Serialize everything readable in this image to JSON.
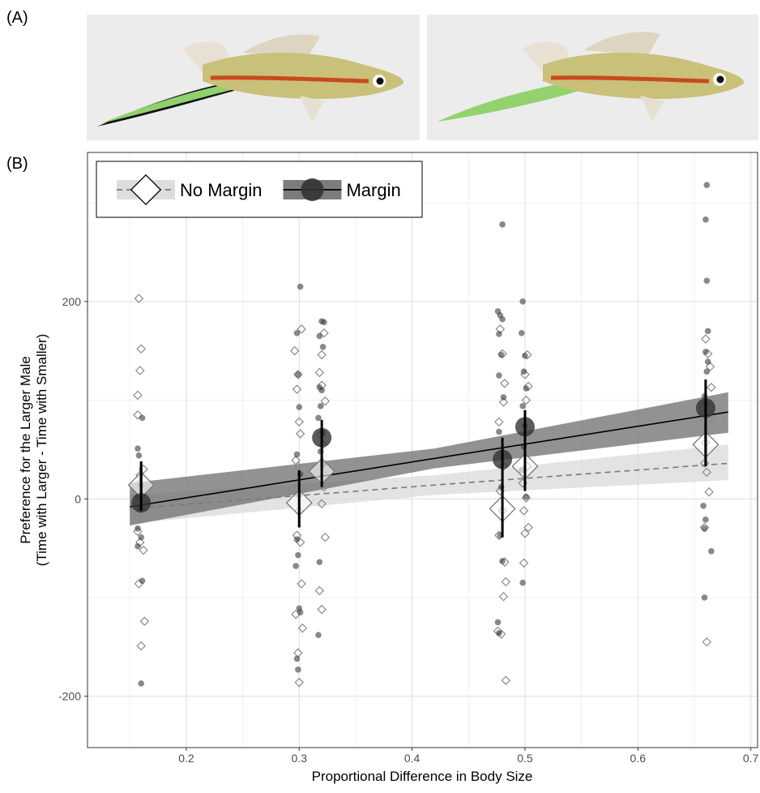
{
  "panel_labels": [
    "(A)",
    "(B)"
  ],
  "chart_data": {
    "type": "scatter",
    "xlabel": "Proportional Difference in Body Size",
    "ylabel": [
      "Preference for the Larger Male",
      "(Time with Larger - Time with Smaller)"
    ],
    "xlim": [
      0.1125,
      0.706
    ],
    "ylim": [
      -252,
      351
    ],
    "xticks": [
      0.2,
      0.3,
      0.4,
      0.5,
      0.6,
      0.7
    ],
    "yticks": [
      -200,
      0,
      200
    ],
    "grid": true,
    "legend": "upper left",
    "series": [
      {
        "name": "No Margin",
        "marker": "diamond",
        "color": "#8a8a8a",
        "line_style": "dashed",
        "line_color": "#7a7a7a",
        "ribbon_color": "#d9d9d9",
        "x": [
          0.158,
          0.16,
          0.159,
          0.157,
          0.157,
          0.162,
          0.159,
          0.158,
          0.161,
          0.157,
          0.159,
          0.162,
          0.158,
          0.163,
          0.16,
          0.302,
          0.296,
          0.299,
          0.298,
          0.3,
          0.301,
          0.297,
          0.299,
          0.3,
          0.298,
          0.301,
          0.302,
          0.297,
          0.303,
          0.299,
          0.3,
          0.322,
          0.32,
          0.318,
          0.32,
          0.323,
          0.319,
          0.321,
          0.318,
          0.322,
          0.32,
          0.323,
          0.318,
          0.32,
          0.478,
          0.48,
          0.482,
          0.481,
          0.477,
          0.479,
          0.481,
          0.478,
          0.48,
          0.477,
          0.482,
          0.483,
          0.481,
          0.476,
          0.479,
          0.483,
          0.502,
          0.5,
          0.503,
          0.501,
          0.499,
          0.502,
          0.498,
          0.501,
          0.499,
          0.503,
          0.5,
          0.499,
          0.66,
          0.662,
          0.664,
          0.665,
          0.664,
          0.66,
          0.659,
          0.661,
          0.663,
          0.659,
          0.661
        ],
        "values": [
          203,
          152,
          130,
          105,
          85,
          30,
          24,
          15,
          -8,
          -33,
          -44,
          -52,
          -86,
          -124,
          -149,
          172,
          150,
          126,
          111,
          78,
          66,
          39,
          33,
          -12,
          -37,
          -44,
          -86,
          -117,
          -131,
          -156,
          -186,
          168,
          146,
          128,
          115,
          99,
          65,
          55,
          27,
          12,
          -5,
          -39,
          -93,
          -112,
          172,
          147,
          117,
          98,
          78,
          45,
          33,
          8,
          -12,
          -37,
          -64,
          -84,
          -99,
          -134,
          -137,
          -184,
          146,
          126,
          114,
          100,
          62,
          33,
          16,
          1,
          -12,
          -29,
          -35,
          -65,
          162,
          147,
          134,
          113,
          81,
          57,
          36,
          27,
          7,
          -29,
          -145
        ],
        "mean_x": [
          0.16,
          0.3,
          0.32,
          0.48,
          0.5,
          0.66
        ],
        "mean_values": [
          14,
          -4,
          28,
          -10,
          33,
          55
        ],
        "mean_lower": [
          -8,
          -29,
          12,
          -39,
          8,
          33
        ],
        "mean_upper": [
          38,
          29,
          43,
          16,
          53,
          78
        ],
        "fit_x": [
          0.15,
          0.42,
          0.68
        ],
        "fit_values": [
          -10,
          14,
          36
        ],
        "fit_lower": [
          -25,
          4,
          19
        ],
        "fit_upper": [
          4,
          24,
          55
        ]
      },
      {
        "name": "Margin",
        "marker": "circle",
        "color": "#3a3a3a",
        "line_style": "solid",
        "line_color": "#000000",
        "ribbon_color": "#6e6e6e",
        "x": [
          0.161,
          0.157,
          0.158,
          0.16,
          0.157,
          0.159,
          0.157,
          0.16,
          0.157,
          0.161,
          0.16,
          0.301,
          0.298,
          0.299,
          0.3,
          0.298,
          0.301,
          0.3,
          0.298,
          0.299,
          0.297,
          0.3,
          0.301,
          0.298,
          0.299,
          0.32,
          0.322,
          0.318,
          0.321,
          0.318,
          0.32,
          0.319,
          0.317,
          0.321,
          0.319,
          0.322,
          0.318,
          0.317,
          0.48,
          0.476,
          0.478,
          0.48,
          0.477,
          0.479,
          0.477,
          0.481,
          0.477,
          0.479,
          0.478,
          0.48,
          0.476,
          0.477,
          0.498,
          0.497,
          0.5,
          0.499,
          0.501,
          0.498,
          0.5,
          0.499,
          0.497,
          0.501,
          0.498,
          0.661,
          0.66,
          0.661,
          0.662,
          0.66,
          0.662,
          0.661,
          0.659,
          0.66,
          0.658,
          0.66,
          0.659,
          0.665,
          0.659
        ],
        "values": [
          82,
          51,
          44,
          14,
          2,
          -11,
          -30,
          -39,
          -48,
          -83,
          -187,
          215,
          168,
          126,
          93,
          45,
          25,
          4,
          -41,
          -57,
          -68,
          -111,
          -115,
          -162,
          -173,
          180,
          179,
          165,
          154,
          113,
          110,
          94,
          82,
          67,
          48,
          35,
          -64,
          -138,
          278,
          190,
          186,
          182,
          167,
          146,
          125,
          103,
          68,
          12,
          -37,
          -63,
          -125,
          -136,
          200,
          168,
          145,
          129,
          112,
          94,
          74,
          53,
          29,
          2,
          -85,
          318,
          283,
          221,
          170,
          149,
          139,
          129,
          104,
          96,
          -7,
          -21,
          -30,
          -53,
          -100
        ],
        "mean_x": [
          0.16,
          0.32,
          0.48,
          0.5,
          0.66
        ],
        "mean_values": [
          -4,
          62,
          40,
          73,
          92
        ],
        "mean_lower": [
          -12,
          29,
          12,
          37,
          35
        ],
        "mean_upper": [
          33,
          80,
          62,
          90,
          121
        ],
        "fit_x": [
          0.15,
          0.42,
          0.68
        ],
        "fit_values": [
          -8,
          41,
          88
        ],
        "fit_lower": [
          -27,
          31,
          67
        ],
        "fit_upper": [
          16,
          51,
          108
        ]
      }
    ]
  }
}
